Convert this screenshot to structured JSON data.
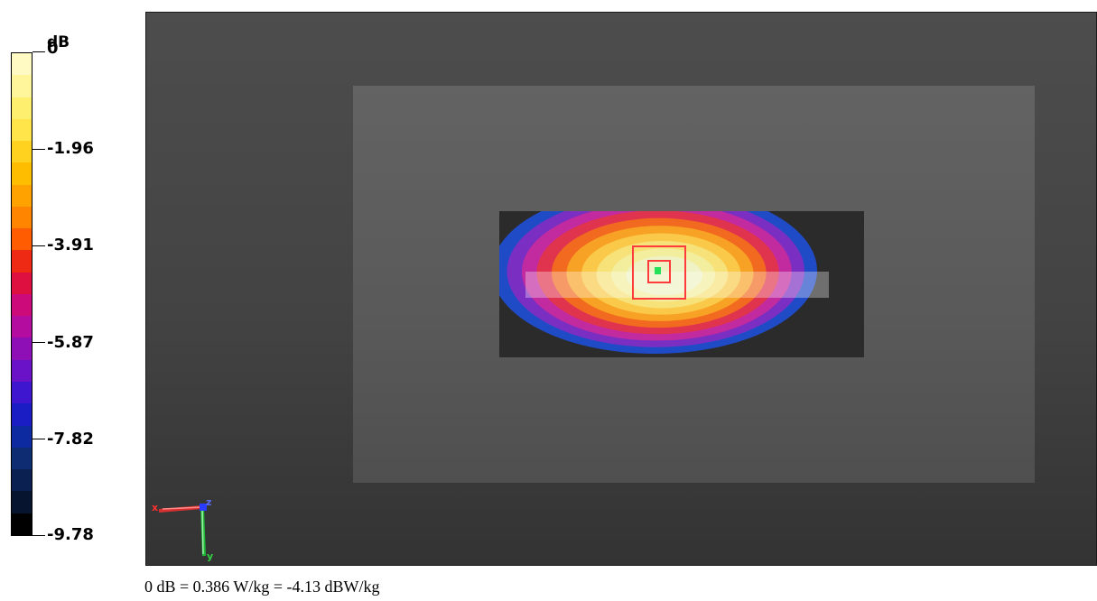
{
  "legend": {
    "unit": "dB",
    "max": 0,
    "min": -9.78,
    "ticks": [
      "0",
      "-1.96",
      "-3.91",
      "-5.87",
      "-7.82",
      "-9.78"
    ],
    "tick_values": [
      0,
      -1.96,
      -3.91,
      -5.87,
      -7.82,
      -9.78
    ],
    "color_bands": [
      "#fff9c4",
      "#fff59a",
      "#ffef6e",
      "#ffe44a",
      "#ffd21f",
      "#ffbd00",
      "#ffa200",
      "#ff8400",
      "#ff5b00",
      "#ee2a14",
      "#dd1040",
      "#cc0a7a",
      "#b40c9e",
      "#8e0fb6",
      "#6a12c8",
      "#3e16d0",
      "#1a1cc4",
      "#0e2aa0",
      "#0e2c72",
      "#0a2050",
      "#061430",
      "#000000"
    ]
  },
  "viewport": {
    "axes": {
      "x": "x",
      "y": "y",
      "z": "z"
    },
    "hotspot_colors": [
      "#1f4fd8",
      "#7b2fc2",
      "#c22aa0",
      "#e0344e",
      "#f26a1f",
      "#f8a225",
      "#fac94a",
      "#f7e27a",
      "#f2ee9e",
      "#eef2c4"
    ],
    "marker_color": "#ff3b3b",
    "peak_color": "#27e05a"
  },
  "reference": {
    "text": "0 dB = 0.386 W/kg = -4.13 dBW/kg"
  }
}
